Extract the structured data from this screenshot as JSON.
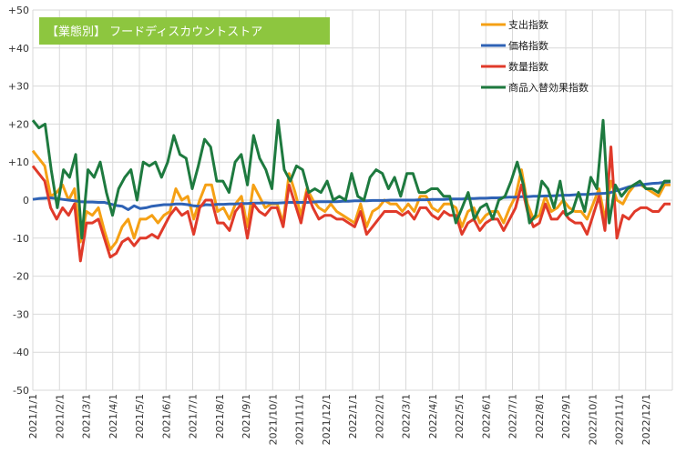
{
  "chart_data": {
    "type": "line",
    "title": "【業態別】 フードディスカウントストア",
    "xlabel": "",
    "ylabel": "",
    "ylim": [
      -50,
      50
    ],
    "y_ticks": [
      "+50",
      "+40",
      "+30",
      "+20",
      "+10",
      "0",
      "-10",
      "-20",
      "-30",
      "-40",
      "-50"
    ],
    "y_tick_values": [
      50,
      40,
      30,
      20,
      10,
      0,
      -10,
      -20,
      -30,
      -40,
      -50
    ],
    "x_ticks": [
      "2021/1/1",
      "2021/2/1",
      "2021/3/1",
      "2021/4/1",
      "2021/5/1",
      "2021/6/1",
      "2021/7/1",
      "2021/8/1",
      "2021/9/1",
      "2021/10/1",
      "2021/11/1",
      "2021/12/1",
      "2022/1/1",
      "2022/2/1",
      "2022/3/1",
      "2022/4/1",
      "2022/5/1",
      "2022/6/1",
      "2022/7/1",
      "2022/8/1",
      "2022/9/1",
      "2022/10/1",
      "2022/11/1",
      "2022/12/1"
    ],
    "legend_position": "top-right",
    "grid": true,
    "series": [
      {
        "name": "支出指数",
        "color": "#f5a014",
        "values": [
          13,
          11,
          9,
          1,
          2,
          4,
          0,
          3,
          -11,
          -3,
          -4,
          -2,
          -8,
          -13,
          -11,
          -7,
          -5,
          -10,
          -5,
          -5,
          -4,
          -6,
          -4,
          -3,
          3,
          0,
          1,
          -5,
          0,
          4,
          4,
          -3,
          -2,
          -5,
          -1,
          1,
          -7,
          4,
          1,
          -2,
          -1,
          -1,
          -6,
          7,
          2,
          -4,
          3,
          0,
          -2,
          -3,
          -1,
          -3,
          -4,
          -5,
          -6,
          -1,
          -7,
          -3,
          -2,
          0,
          -1,
          -1,
          -3,
          -1,
          -3,
          1,
          1,
          -2,
          -3,
          -1,
          -1,
          -2,
          -7,
          -3,
          -2,
          -6,
          -4,
          -3,
          -3,
          -6,
          -2,
          1,
          8,
          -1,
          -5,
          -4,
          1,
          -3,
          -2,
          0,
          -2,
          -3,
          -3,
          -5,
          -1,
          3,
          -5,
          5,
          0,
          -1,
          2,
          4,
          4,
          3,
          2,
          1,
          4,
          4
        ]
      },
      {
        "name": "価格指数",
        "color": "#2e62b5",
        "values": [
          0.2,
          0.4,
          0.5,
          0.6,
          0.4,
          0.2,
          0.0,
          -0.2,
          -0.4,
          -0.5,
          -0.5,
          -0.6,
          -0.6,
          -1,
          -1.4,
          -1.6,
          -2.5,
          -1.5,
          -2.2,
          -2.0,
          -1.6,
          -1.4,
          -1.2,
          -1.2,
          -1,
          -1,
          -1.2,
          -1.5,
          -1.6,
          -1.2,
          -1.3,
          -1.1,
          -1.1,
          -1,
          -1,
          -0.9,
          -0.9,
          -0.8,
          -0.8,
          -0.7,
          -0.8,
          -0.8,
          -0.7,
          -0.6,
          -0.6,
          -0.6,
          -0.6,
          -0.5,
          -0.4,
          -0.4,
          -0.4,
          -0.4,
          -0.3,
          -0.3,
          -0.2,
          -0.2,
          -0.2,
          -0.1,
          -0.1,
          -0.1,
          0,
          0,
          0,
          0,
          0,
          0.1,
          0.1,
          0.2,
          0.2,
          0.2,
          0.3,
          0.3,
          0.3,
          0.4,
          0.4,
          0.5,
          0.5,
          0.6,
          0.6,
          0.7,
          0.8,
          0.8,
          0.9,
          0.9,
          1.0,
          1.0,
          1.1,
          1.1,
          1.2,
          1.3,
          1.3,
          1.4,
          1.5,
          1.5,
          1.6,
          1.7,
          1.8,
          2.0,
          2.5,
          3.0,
          3.5,
          3.8,
          4.0,
          4.2,
          4.4,
          4.5,
          4.7,
          4.8
        ]
      },
      {
        "name": "数量指数",
        "color": "#e03a2a",
        "values": [
          9,
          7,
          5,
          -2,
          -5,
          -2,
          -4,
          -1,
          -16,
          -6,
          -6,
          -5,
          -10,
          -15,
          -14,
          -11,
          -10,
          -12,
          -10,
          -10,
          -9,
          -10,
          -7,
          -4,
          -2,
          -4,
          -3,
          -9,
          -2,
          0,
          0,
          -6,
          -6,
          -8,
          -3,
          -1,
          -10,
          -1,
          -3,
          -4,
          -2,
          -2,
          -7,
          4,
          -1,
          -6,
          2,
          -2,
          -5,
          -4,
          -4,
          -5,
          -5,
          -6,
          -7,
          -3,
          -9,
          -7,
          -5,
          -3,
          -3,
          -3,
          -4,
          -3,
          -5,
          -2,
          -2,
          -4,
          -5,
          -3,
          -4,
          -4,
          -9,
          -6,
          -5,
          -8,
          -6,
          -5,
          -5,
          -8,
          -5,
          -2,
          4,
          -3,
          -7,
          -6,
          -1,
          -5,
          -5,
          -3,
          -5,
          -6,
          -6,
          -9,
          -4,
          1,
          -8,
          14,
          -10,
          -4,
          -5,
          -3,
          -2,
          -2,
          -3,
          -3,
          -1,
          -1
        ]
      },
      {
        "name": "商品入替効果指数",
        "color": "#1e7a3f",
        "values": [
          21,
          19,
          20,
          8,
          -2,
          8,
          6,
          12,
          -10,
          8,
          6,
          10,
          2,
          -4,
          3,
          6,
          8,
          0,
          10,
          9,
          10,
          6,
          10,
          17,
          12,
          11,
          3,
          9,
          16,
          14,
          5,
          5,
          2,
          10,
          12,
          4,
          17,
          11,
          8,
          3,
          21,
          8,
          5,
          9,
          8,
          2,
          3,
          2,
          5,
          0,
          1,
          0,
          7,
          1,
          0,
          6,
          8,
          7,
          3,
          6,
          1,
          7,
          7,
          2,
          2,
          3,
          3,
          1,
          1,
          -6,
          -2,
          2,
          -5,
          -2,
          -1,
          -5,
          0,
          1,
          5,
          10,
          4,
          -6,
          -4,
          5,
          3,
          -2,
          5,
          -4,
          -3,
          2,
          -3,
          6,
          3,
          21,
          -6,
          4,
          1,
          3,
          4,
          5,
          3,
          3,
          2,
          5,
          5
        ]
      }
    ]
  }
}
